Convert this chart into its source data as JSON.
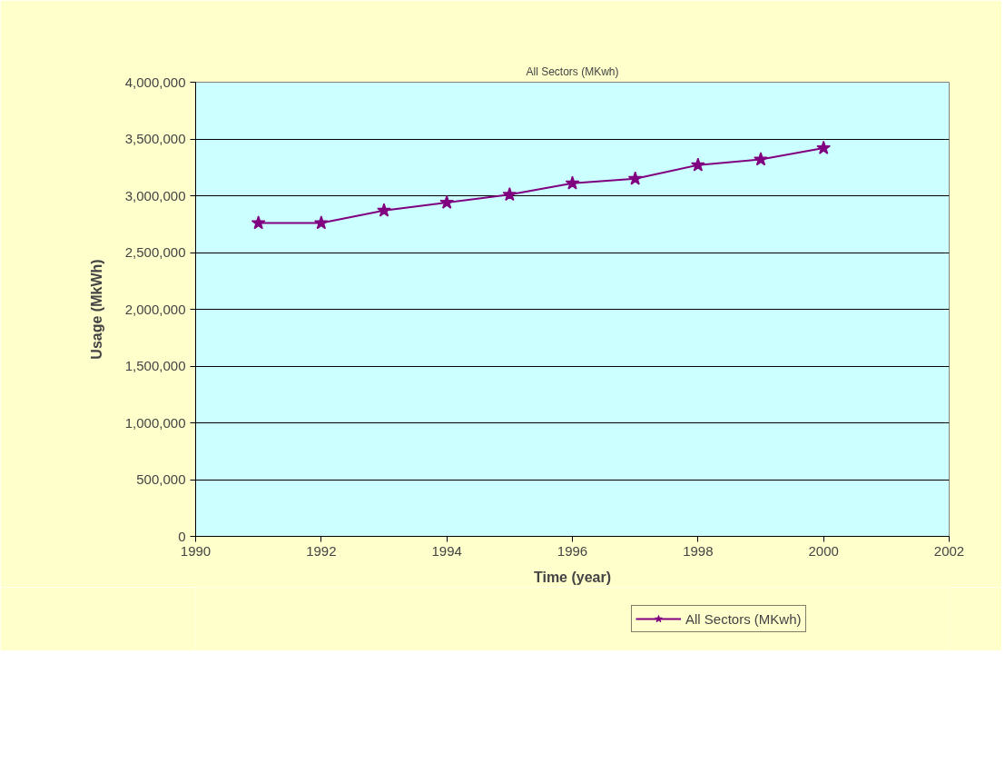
{
  "chart_data": {
    "type": "line",
    "title": "All Sectors (MKwh)",
    "xlabel": "Time (year)",
    "ylabel": "Usage (MkWh)",
    "x": [
      1991,
      1992,
      1993,
      1994,
      1995,
      1996,
      1997,
      1998,
      1999,
      2000
    ],
    "series": [
      {
        "name": "All Sectors (MKwh)",
        "color": "#800080",
        "values": [
          2760000,
          2760000,
          2870000,
          2940000,
          3010000,
          3110000,
          3150000,
          3270000,
          3320000,
          3420000
        ]
      }
    ],
    "xlim": [
      1990,
      2002
    ],
    "xticks": [
      1990,
      1992,
      1994,
      1996,
      1998,
      2000,
      2002
    ],
    "ylim": [
      0,
      4000000
    ],
    "yticks": [
      {
        "value": 0,
        "label": "0"
      },
      {
        "value": 500000,
        "label": "500,000"
      },
      {
        "value": 1000000,
        "label": "1,000,000"
      },
      {
        "value": 1500000,
        "label": "1,500,000"
      },
      {
        "value": 2000000,
        "label": "2,000,000"
      },
      {
        "value": 2500000,
        "label": "2,500,000"
      },
      {
        "value": 3000000,
        "label": "3,000,000"
      },
      {
        "value": 3500000,
        "label": "3,500,000"
      },
      {
        "value": 4000000,
        "label": "4,000,000"
      }
    ],
    "grid": "y",
    "legend": "bottom",
    "marker": "star",
    "line_style": "solid"
  }
}
